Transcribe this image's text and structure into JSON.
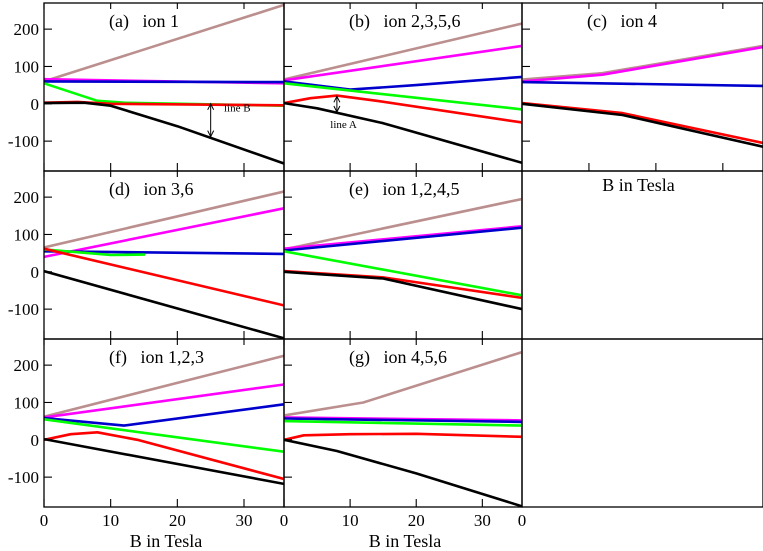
{
  "chart_data": {
    "type": "line",
    "x_range": [
      0,
      36
    ],
    "y_range": [
      -180,
      270
    ],
    "x_ticks": [
      0,
      10,
      20,
      30
    ],
    "y_ticks": [
      -100,
      0,
      100,
      200
    ],
    "y_tick_labels": [
      "-100",
      "0",
      "100",
      "200"
    ],
    "xlabel": "B in Tesla",
    "colors": {
      "brown": "#bc8f8f",
      "magenta": "#ff00ff",
      "blue": "#0000cd",
      "green": "#00ff00",
      "red": "#ff0000",
      "black": "#000000"
    },
    "panels": [
      {
        "label": "(a)   ion 1",
        "series": [
          {
            "name": "brown",
            "color": "#bc8f8f",
            "points": [
              [
                0,
                60
              ],
              [
                36,
                265
              ]
            ]
          },
          {
            "name": "magenta",
            "color": "#ff00ff",
            "points": [
              [
                0,
                66
              ],
              [
                36,
                55
              ]
            ]
          },
          {
            "name": "blue",
            "color": "#0000cd",
            "points": [
              [
                0,
                60
              ],
              [
                36,
                58
              ]
            ]
          },
          {
            "name": "green",
            "color": "#00ff00",
            "points": [
              [
                0,
                55
              ],
              [
                8,
                8
              ],
              [
                12,
                3
              ],
              [
                36,
                -5
              ]
            ]
          },
          {
            "name": "red",
            "color": "#ff0000",
            "points": [
              [
                0,
                3
              ],
              [
                5,
                5
              ],
              [
                10,
                0
              ],
              [
                36,
                -4
              ]
            ]
          },
          {
            "name": "black",
            "color": "#000000",
            "points": [
              [
                0,
                2
              ],
              [
                6,
                3
              ],
              [
                10,
                -5
              ],
              [
                20,
                -60
              ],
              [
                36,
                -160
              ]
            ]
          }
        ],
        "annotations": [
          {
            "text": "line B",
            "x": 27,
            "y": -20
          },
          {
            "arrow": [
              [
                25,
                0
              ],
              [
                25,
                -88
              ]
            ]
          }
        ]
      },
      {
        "label": "(b)   ion 2,3,5,6",
        "series": [
          {
            "name": "brown",
            "color": "#bc8f8f",
            "points": [
              [
                0,
                65
              ],
              [
                36,
                215
              ]
            ]
          },
          {
            "name": "magenta",
            "color": "#ff00ff",
            "points": [
              [
                0,
                63
              ],
              [
                36,
                155
              ]
            ]
          },
          {
            "name": "blue",
            "color": "#0000cd",
            "points": [
              [
                0,
                60
              ],
              [
                10,
                38
              ],
              [
                20,
                50
              ],
              [
                36,
                72
              ]
            ]
          },
          {
            "name": "green",
            "color": "#00ff00",
            "points": [
              [
                0,
                55
              ],
              [
                36,
                -15
              ]
            ]
          },
          {
            "name": "red",
            "color": "#ff0000",
            "points": [
              [
                0,
                2
              ],
              [
                4,
                15
              ],
              [
                8,
                22
              ],
              [
                14,
                8
              ],
              [
                36,
                -50
              ]
            ]
          },
          {
            "name": "black",
            "color": "#000000",
            "points": [
              [
                0,
                2
              ],
              [
                5,
                -12
              ],
              [
                15,
                -52
              ],
              [
                36,
                -158
              ]
            ]
          }
        ],
        "annotations": [
          {
            "text": "line A",
            "x": 7,
            "y": -65
          },
          {
            "arrow": [
              [
                8,
                20
              ],
              [
                8,
                -22
              ]
            ]
          }
        ]
      },
      {
        "label": "(c)   ion 4",
        "series": [
          {
            "name": "brown",
            "color": "#bc8f8f",
            "points": [
              [
                0,
                65
              ],
              [
                12,
                82
              ],
              [
                36,
                155
              ]
            ]
          },
          {
            "name": "magenta",
            "color": "#ff00ff",
            "points": [
              [
                0,
                60
              ],
              [
                12,
                78
              ],
              [
                36,
                152
              ]
            ]
          },
          {
            "name": "blue",
            "color": "#0000cd",
            "points": [
              [
                0,
                58
              ],
              [
                36,
                48
              ]
            ]
          },
          {
            "name": "red",
            "color": "#ff0000",
            "points": [
              [
                0,
                2
              ],
              [
                15,
                -25
              ],
              [
                36,
                -105
              ]
            ]
          },
          {
            "name": "black",
            "color": "#000000",
            "points": [
              [
                0,
                0
              ],
              [
                15,
                -30
              ],
              [
                36,
                -115
              ]
            ]
          }
        ],
        "annotations": []
      },
      {
        "label": "(d)   ion 3,6",
        "series": [
          {
            "name": "brown",
            "color": "#bc8f8f",
            "points": [
              [
                0,
                65
              ],
              [
                36,
                215
              ]
            ]
          },
          {
            "name": "magenta",
            "color": "#ff00ff",
            "points": [
              [
                0,
                40
              ],
              [
                36,
                170
              ]
            ]
          },
          {
            "name": "blue",
            "color": "#0000cd",
            "points": [
              [
                0,
                55
              ],
              [
                36,
                48
              ]
            ]
          },
          {
            "name": "green",
            "color": "#00ff00",
            "points": [
              [
                0,
                60
              ],
              [
                10,
                45
              ],
              [
                15,
                46
              ]
            ]
          },
          {
            "name": "red",
            "color": "#ff0000",
            "points": [
              [
                0,
                62
              ],
              [
                36,
                -90
              ]
            ]
          },
          {
            "name": "black",
            "color": "#000000",
            "points": [
              [
                0,
                2
              ],
              [
                36,
                -178
              ]
            ]
          }
        ],
        "annotations": []
      },
      {
        "label": "(e)   ion 1,2,4,5",
        "series": [
          {
            "name": "brown",
            "color": "#bc8f8f",
            "points": [
              [
                0,
                60
              ],
              [
                36,
                195
              ]
            ]
          },
          {
            "name": "magenta",
            "color": "#ff00ff",
            "points": [
              [
                0,
                62
              ],
              [
                36,
                122
              ]
            ]
          },
          {
            "name": "blue",
            "color": "#0000cd",
            "points": [
              [
                0,
                57
              ],
              [
                36,
                118
              ]
            ]
          },
          {
            "name": "green",
            "color": "#00ff00",
            "points": [
              [
                0,
                55
              ],
              [
                36,
                -63
              ]
            ]
          },
          {
            "name": "red",
            "color": "#ff0000",
            "points": [
              [
                0,
                2
              ],
              [
                15,
                -15
              ],
              [
                36,
                -70
              ]
            ]
          },
          {
            "name": "black",
            "color": "#000000",
            "points": [
              [
                0,
                0
              ],
              [
                15,
                -18
              ],
              [
                36,
                -100
              ]
            ]
          }
        ],
        "annotations": []
      },
      {
        "label": "(f)   ion 1,2,3",
        "series": [
          {
            "name": "brown",
            "color": "#bc8f8f",
            "points": [
              [
                0,
                62
              ],
              [
                36,
                225
              ]
            ]
          },
          {
            "name": "magenta",
            "color": "#ff00ff",
            "points": [
              [
                0,
                60
              ],
              [
                36,
                148
              ]
            ]
          },
          {
            "name": "blue",
            "color": "#0000cd",
            "points": [
              [
                0,
                58
              ],
              [
                12,
                38
              ],
              [
                36,
                95
              ]
            ]
          },
          {
            "name": "green",
            "color": "#00ff00",
            "points": [
              [
                0,
                55
              ],
              [
                36,
                -32
              ]
            ]
          },
          {
            "name": "red",
            "color": "#ff0000",
            "points": [
              [
                0,
                0
              ],
              [
                4,
                15
              ],
              [
                8,
                20
              ],
              [
                14,
                0
              ],
              [
                36,
                -105
              ]
            ]
          },
          {
            "name": "black",
            "color": "#000000",
            "points": [
              [
                0,
                2
              ],
              [
                36,
                -118
              ]
            ]
          }
        ],
        "annotations": []
      },
      {
        "label": "(g)   ion 4,5,6",
        "series": [
          {
            "name": "brown",
            "color": "#bc8f8f",
            "points": [
              [
                0,
                65
              ],
              [
                12,
                100
              ],
              [
                36,
                235
              ]
            ]
          },
          {
            "name": "magenta",
            "color": "#ff00ff",
            "points": [
              [
                0,
                60
              ],
              [
                36,
                52
              ]
            ]
          },
          {
            "name": "blue",
            "color": "#0000cd",
            "points": [
              [
                0,
                57
              ],
              [
                36,
                48
              ]
            ]
          },
          {
            "name": "green",
            "color": "#00ff00",
            "points": [
              [
                0,
                50
              ],
              [
                36,
                38
              ]
            ]
          },
          {
            "name": "red",
            "color": "#ff0000",
            "points": [
              [
                0,
                0
              ],
              [
                3,
                12
              ],
              [
                10,
                15
              ],
              [
                20,
                16
              ],
              [
                36,
                8
              ]
            ]
          },
          {
            "name": "black",
            "color": "#000000",
            "points": [
              [
                0,
                0
              ],
              [
                8,
                -30
              ],
              [
                20,
                -90
              ],
              [
                36,
                -178
              ]
            ]
          }
        ],
        "annotations": []
      }
    ]
  }
}
